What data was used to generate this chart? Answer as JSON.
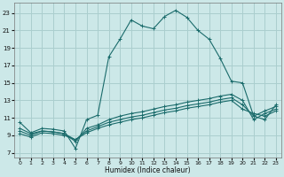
{
  "xlabel": "Humidex (Indice chaleur)",
  "x_ticks": [
    0,
    1,
    2,
    3,
    4,
    5,
    6,
    7,
    8,
    9,
    10,
    11,
    12,
    13,
    14,
    15,
    16,
    17,
    18,
    19,
    20,
    21,
    22,
    23
  ],
  "y_ticks": [
    7,
    9,
    11,
    13,
    15,
    17,
    19,
    21,
    23
  ],
  "xlim": [
    -0.5,
    23.5
  ],
  "ylim": [
    6.5,
    24.2
  ],
  "bg_color": "#cce8e8",
  "grid_color": "#aacece",
  "line_color": "#1a6b6b",
  "line1_x": [
    0,
    1,
    2,
    3,
    4,
    5,
    6,
    7,
    8,
    9,
    10,
    11,
    12,
    13,
    14,
    15,
    16,
    17,
    18,
    19,
    20,
    21,
    22,
    23
  ],
  "line1_y": [
    10.5,
    9.3,
    9.8,
    9.7,
    9.5,
    7.5,
    10.8,
    11.3,
    18.0,
    20.0,
    22.2,
    21.5,
    21.2,
    22.6,
    23.3,
    22.5,
    21.0,
    20.0,
    17.8,
    15.2,
    15.0,
    11.2,
    10.8,
    12.5
  ],
  "line2_x": [
    0,
    1,
    2,
    3,
    4,
    5,
    6,
    7,
    8,
    9,
    10,
    11,
    12,
    13,
    14,
    15,
    16,
    17,
    18,
    19,
    20,
    21,
    22,
    23
  ],
  "line2_y": [
    9.8,
    9.2,
    9.5,
    9.4,
    9.2,
    8.3,
    9.8,
    10.2,
    10.8,
    11.2,
    11.5,
    11.7,
    12.0,
    12.3,
    12.5,
    12.8,
    13.0,
    13.2,
    13.5,
    13.7,
    13.0,
    10.8,
    11.5,
    12.0
  ],
  "line3_x": [
    0,
    1,
    2,
    3,
    4,
    5,
    6,
    7,
    8,
    9,
    10,
    11,
    12,
    13,
    14,
    15,
    16,
    17,
    18,
    19,
    20,
    21,
    22,
    23
  ],
  "line3_y": [
    9.5,
    9.0,
    9.5,
    9.4,
    9.2,
    8.5,
    9.5,
    10.0,
    10.5,
    10.8,
    11.1,
    11.3,
    11.6,
    11.9,
    12.1,
    12.4,
    12.6,
    12.8,
    13.1,
    13.3,
    12.5,
    11.2,
    11.8,
    12.3
  ],
  "line4_x": [
    0,
    1,
    2,
    3,
    4,
    5,
    6,
    7,
    8,
    9,
    10,
    11,
    12,
    13,
    14,
    15,
    16,
    17,
    18,
    19,
    20,
    21,
    22,
    23
  ],
  "line4_y": [
    9.2,
    8.8,
    9.3,
    9.2,
    9.0,
    8.5,
    9.3,
    9.8,
    10.2,
    10.5,
    10.8,
    11.0,
    11.3,
    11.6,
    11.8,
    12.1,
    12.3,
    12.5,
    12.8,
    13.0,
    12.0,
    11.5,
    11.2,
    11.8
  ]
}
